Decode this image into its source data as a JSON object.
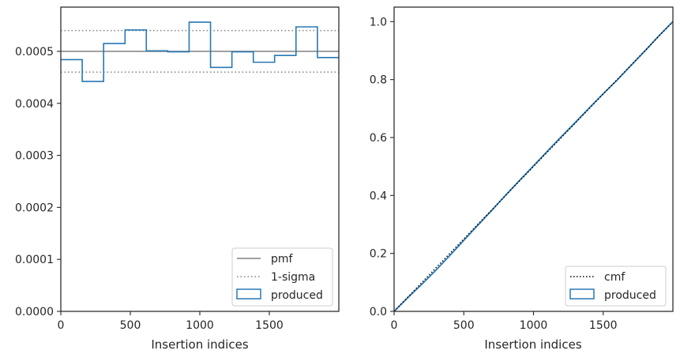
{
  "chart_data": [
    {
      "type": "histogram-step",
      "xlabel": "Insertion indices",
      "ylabel": "",
      "xlim": [
        0,
        2000
      ],
      "ylim": [
        0,
        0.000585
      ],
      "xticks": [
        "0",
        "500",
        "1000",
        "1500"
      ],
      "yticks": [
        "0.0000",
        "0.0001",
        "0.0002",
        "0.0003",
        "0.0004",
        "0.0005"
      ],
      "grid": false,
      "legend": {
        "placement": "lower-right",
        "entries": [
          "pmf",
          "1-sigma",
          "produced"
        ]
      },
      "pmf": 0.0005,
      "sigma_bounds": [
        0.00046,
        0.00054
      ],
      "series": [
        {
          "name": "produced",
          "bin_edges": [
            0,
            154,
            308,
            462,
            615,
            769,
            923,
            1077,
            1231,
            1385,
            1538,
            1692,
            1846,
            2000
          ],
          "values": [
            0.000484,
            0.000442,
            0.000515,
            0.000541,
            0.000501,
            0.000499,
            0.000556,
            0.000469,
            0.000499,
            0.000479,
            0.000492,
            0.000547,
            0.000488
          ]
        }
      ],
      "colors": {
        "produced": "#2878b5",
        "pmf": "#808080",
        "sigma": "#808080"
      }
    },
    {
      "type": "line",
      "xlabel": "Insertion indices",
      "ylabel": "",
      "xlim": [
        0,
        2000
      ],
      "ylim": [
        0,
        1.05
      ],
      "xticks": [
        "0",
        "500",
        "1000",
        "1500"
      ],
      "yticks": [
        "0.0",
        "0.2",
        "0.4",
        "0.6",
        "0.8",
        "1.0"
      ],
      "grid": false,
      "legend": {
        "placement": "lower-right",
        "entries": [
          "cmf",
          "produced"
        ]
      },
      "series": [
        {
          "name": "cmf",
          "x": [
            0,
            2000
          ],
          "y": [
            0,
            1.0
          ]
        },
        {
          "name": "produced",
          "x": [
            0,
            100,
            200,
            300,
            400,
            500,
            600,
            700,
            800,
            900,
            1000,
            1100,
            1200,
            1300,
            1400,
            1500,
            1600,
            1700,
            1800,
            1900,
            2000
          ],
          "y": [
            0,
            0.048,
            0.094,
            0.142,
            0.193,
            0.245,
            0.297,
            0.348,
            0.401,
            0.452,
            0.502,
            0.553,
            0.603,
            0.652,
            0.702,
            0.751,
            0.798,
            0.849,
            0.899,
            0.951,
            1.0
          ]
        }
      ],
      "colors": {
        "produced": "#2878b5",
        "cmf": "#000000"
      }
    }
  ]
}
